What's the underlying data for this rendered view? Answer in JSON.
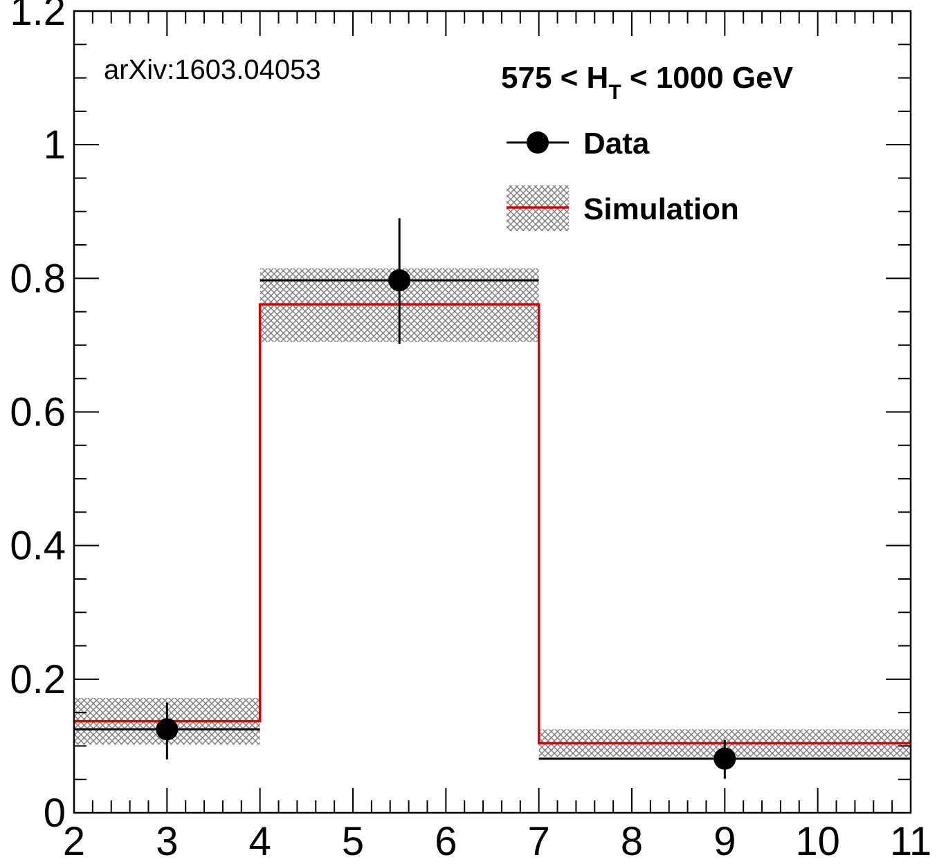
{
  "chart_data": {
    "type": "bar",
    "title": "",
    "xlabel": "",
    "ylabel": "",
    "xlim": [
      2,
      11
    ],
    "ylim": [
      0,
      1.2
    ],
    "grid": false,
    "legend_position": "top-right",
    "x_ticks": [
      "2",
      "3",
      "4",
      "5",
      "6",
      "7",
      "8",
      "9",
      "10",
      "11"
    ],
    "y_ticks": [
      "0",
      "0.2",
      "0.4",
      "0.6",
      "0.8",
      "1",
      "1.2"
    ],
    "annotations": [
      "arXiv:1603.04053"
    ],
    "region_label": {
      "main": "575 < H",
      "subscript": "T",
      "rest": " < 1000 GeV"
    },
    "series": [
      {
        "name": "Data",
        "kind": "points",
        "color": "#000000",
        "points": [
          {
            "x": 3.0,
            "x_low": 2,
            "x_high": 4,
            "y": 0.125,
            "y_err_low": 0.045,
            "y_err_high": 0.04
          },
          {
            "x": 5.5,
            "x_low": 4,
            "x_high": 7,
            "y": 0.797,
            "y_err_low": 0.095,
            "y_err_high": 0.093
          },
          {
            "x": 9.0,
            "x_low": 7,
            "x_high": 11,
            "y": 0.081,
            "y_err_low": 0.03,
            "y_err_high": 0.028
          }
        ]
      },
      {
        "name": "Simulation",
        "kind": "step",
        "color": "#e00000",
        "band_color": "#7a7a7a",
        "bins": [
          {
            "x_low": 2,
            "x_high": 4,
            "y": 0.137,
            "band_low": 0.102,
            "band_high": 0.172
          },
          {
            "x_low": 4,
            "x_high": 7,
            "y": 0.761,
            "band_low": 0.705,
            "band_high": 0.815
          },
          {
            "x_low": 7,
            "x_high": 11,
            "y": 0.104,
            "band_low": 0.084,
            "band_high": 0.125
          }
        ]
      }
    ]
  }
}
